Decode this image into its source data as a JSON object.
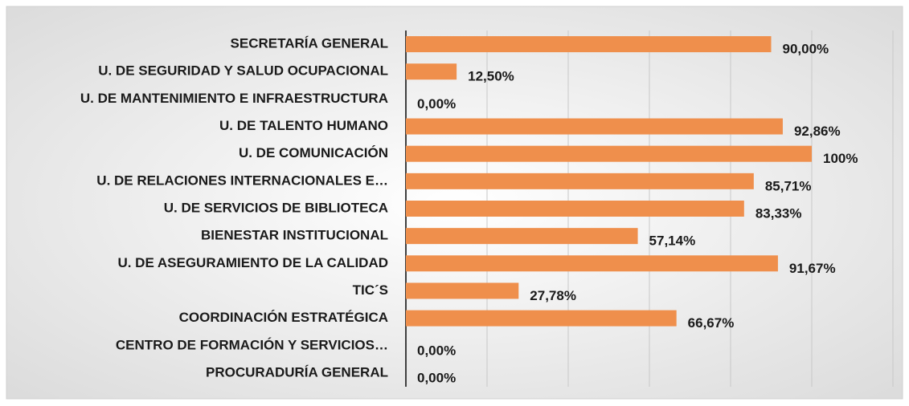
{
  "chart_data": {
    "type": "bar",
    "orientation": "horizontal",
    "categories": [
      "SECRETARÍA GENERAL",
      "U. DE SEGURIDAD Y SALUD OCUPACIONAL",
      "U. DE MANTENIMIENTO E INFRAESTRUCTURA",
      "U. DE TALENTO HUMANO",
      "U. DE COMUNICACIÓN",
      "U. DE RELACIONES INTERNACIONALES E…",
      "U. DE SERVICIOS DE BIBLIOTECA",
      "BIENESTAR INSTITUCIONAL",
      "U. DE ASEGURAMIENTO DE LA CALIDAD",
      "TIC´S",
      "COORDINACIÓN ESTRATÉGICA",
      "CENTRO DE FORMACIÓN Y SERVICIOS…",
      "PROCURADURÍA GENERAL"
    ],
    "values": [
      90,
      12.5,
      0,
      92.86,
      100,
      85.71,
      83.33,
      57.14,
      91.67,
      27.78,
      66.67,
      0,
      0
    ],
    "value_labels": [
      "90,00%",
      "12,50%",
      "0,00%",
      "92,86%",
      "100%",
      "85,71%",
      "83,33%",
      "57,14%",
      "91,67%",
      "27,78%",
      "66,67%",
      "0,00%",
      "0,00%"
    ],
    "color": "#ef8f4c",
    "xlim": [
      0,
      120
    ],
    "xticks": [
      0,
      20,
      40,
      60,
      80,
      100,
      120
    ],
    "grid": true
  }
}
